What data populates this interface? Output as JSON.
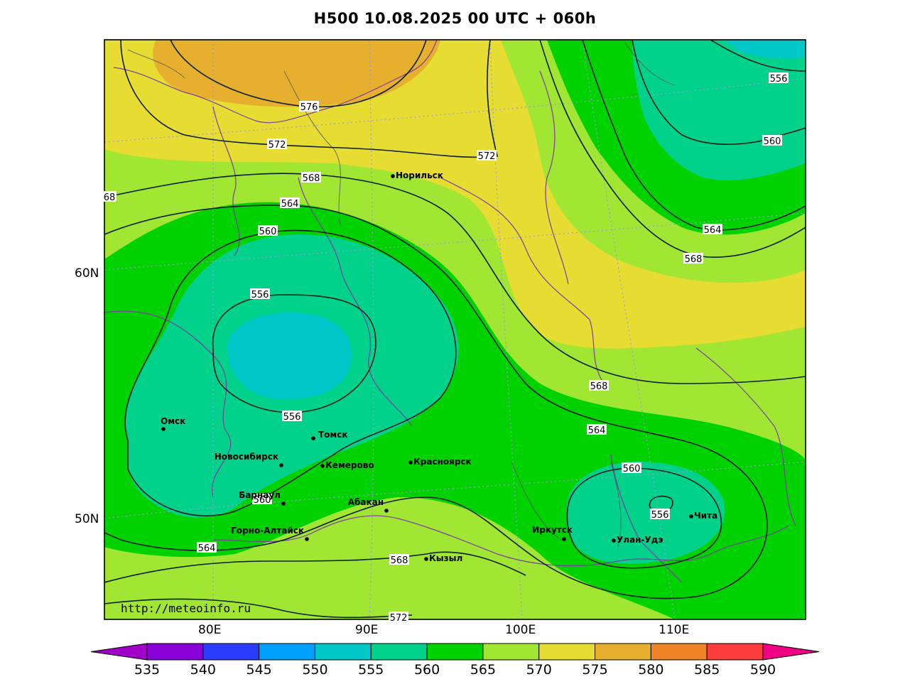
{
  "title": "H500  10.08.2025 00 UTC + 060h",
  "credit": "http://meteoinfo.ru",
  "lat_labels": [
    "60N",
    "50N"
  ],
  "lon_labels": [
    "80E",
    "90E",
    "100E",
    "110E"
  ],
  "contour_labels": [
    "576",
    "572",
    "572",
    "568",
    "68",
    "564",
    "560",
    "556",
    "556",
    "568",
    "564",
    "564",
    "560",
    "560",
    "556",
    "568",
    "572",
    "556",
    "560",
    "564",
    "568"
  ],
  "cities": [
    "Норильск",
    "Омск",
    "Томск",
    "Новосибирск",
    "Кемерово",
    "Красноярск",
    "Барнаул",
    "Абакан",
    "Горно-Алтайск",
    "Кызыл",
    "Иркутск",
    "Улан-Удэ",
    "Чита"
  ],
  "colorbar": {
    "ticks": [
      "535",
      "540",
      "545",
      "550",
      "555",
      "560",
      "565",
      "570",
      "575",
      "580",
      "585",
      "590"
    ],
    "colors": [
      "#8a00d9",
      "#2a3cff",
      "#00a0ff",
      "#00c8c8",
      "#00d28c",
      "#00d200",
      "#a0e632",
      "#e6dc32",
      "#e6af2d",
      "#f08228",
      "#fa3c3c",
      "#f00082"
    ],
    "under_color": "#a000c8",
    "over_color": "#f00082"
  }
}
